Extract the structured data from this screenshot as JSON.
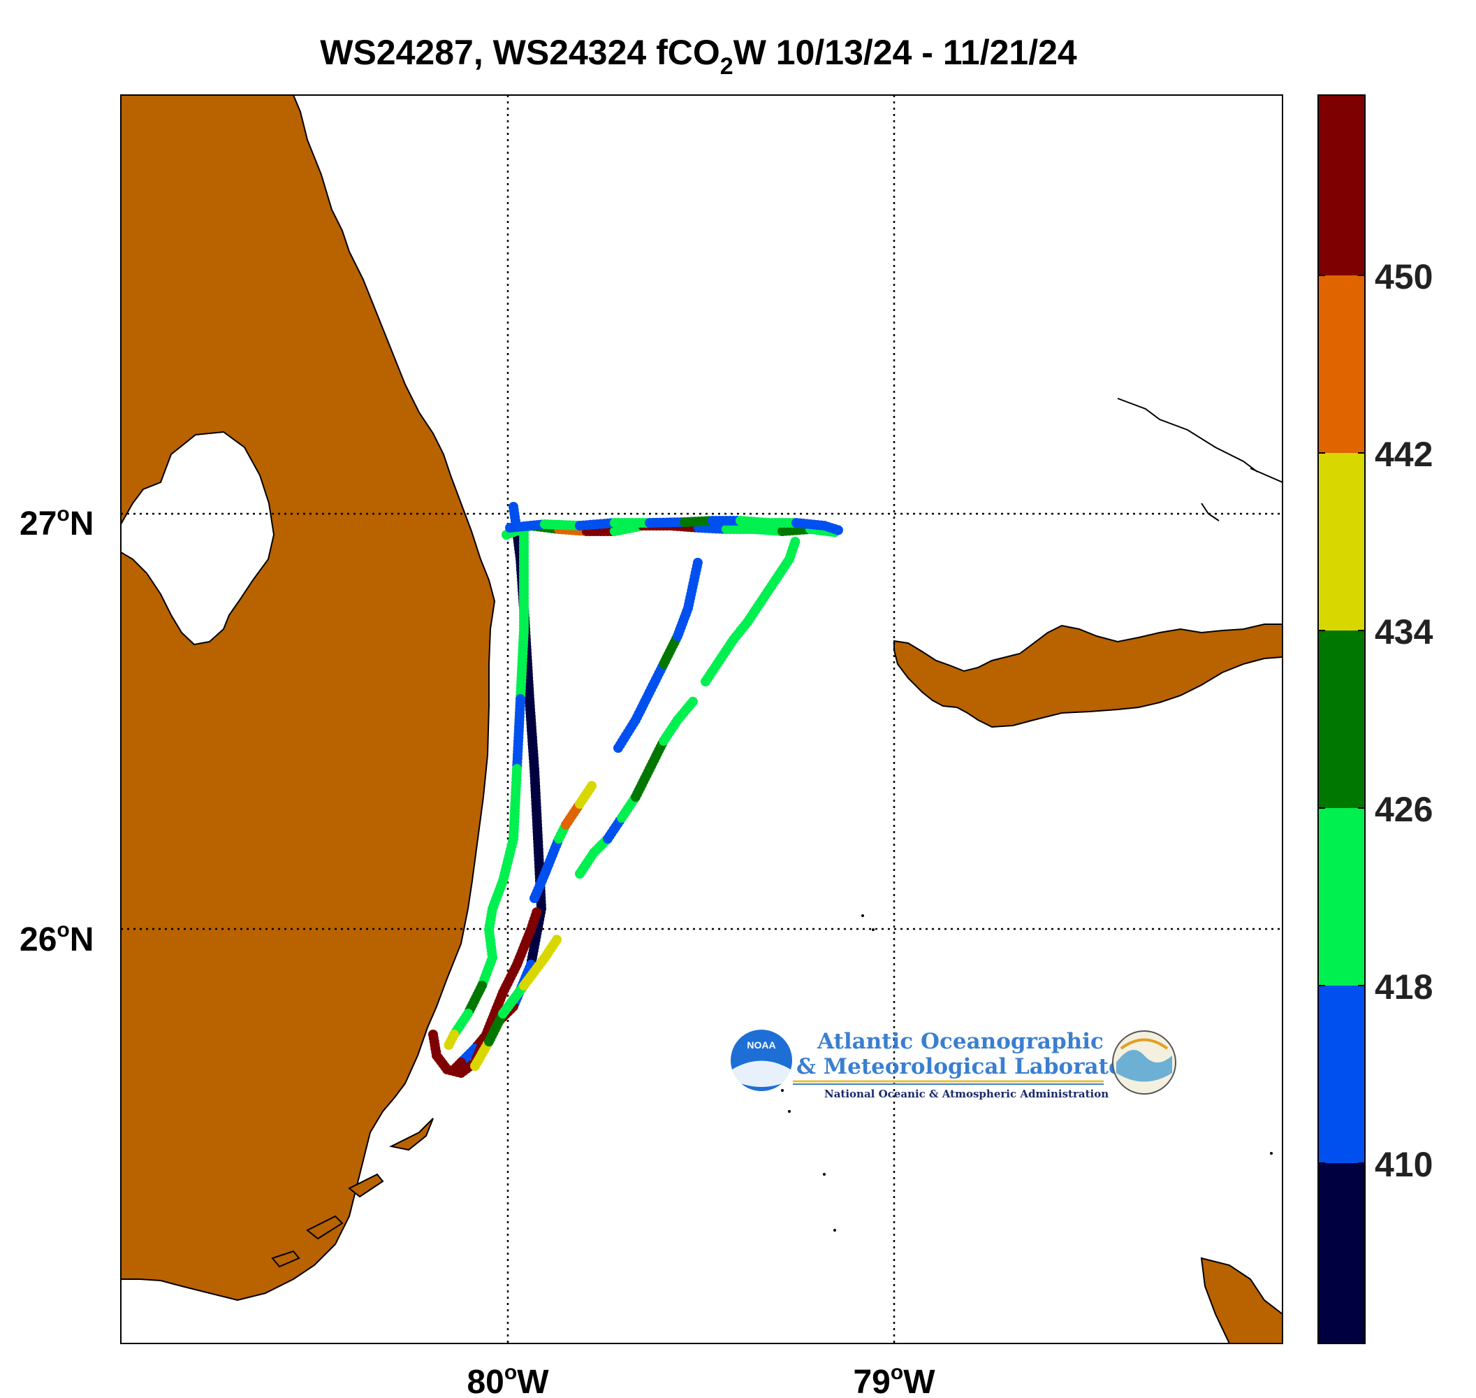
{
  "title": {
    "prefix": "WS24287, WS24324 fCO",
    "subscript": "2",
    "suffix": "W 10/13/24 - 11/21/24"
  },
  "map": {
    "lat_range": [
      25.0,
      28.0
    ],
    "lon_range": [
      -80.5,
      -77.5
    ],
    "grid": "dotted",
    "land_color": "#b86200",
    "lat_ticks": [
      {
        "deg": "27",
        "hemi": "N"
      },
      {
        "deg": "26",
        "hemi": "N"
      }
    ],
    "lon_ticks": [
      {
        "deg": "80",
        "hemi": "W"
      },
      {
        "deg": "79",
        "hemi": "W"
      }
    ],
    "degree_symbol": "o"
  },
  "colorbar": {
    "labels": [
      "450",
      "442",
      "434",
      "426",
      "418",
      "410"
    ],
    "bands": [
      {
        "range": [
          458,
          466
        ],
        "color": "#7f0000"
      },
      {
        "range": [
          450,
          458
        ],
        "color": "#7f0000"
      },
      {
        "range": [
          442,
          450
        ],
        "color": "#e06400"
      },
      {
        "range": [
          434,
          442
        ],
        "color": "#d8d800"
      },
      {
        "range": [
          426,
          434
        ],
        "color": "#007800"
      },
      {
        "range": [
          418,
          426
        ],
        "color": "#00f050"
      },
      {
        "range": [
          410,
          418
        ],
        "color": "#0050f0"
      },
      {
        "range": [
          402,
          410
        ],
        "color": "#000040"
      }
    ]
  },
  "track_colors": {
    "lt410": "#000040",
    "410_418": "#0050f0",
    "418_426": "#00f050",
    "426_434": "#007800",
    "434_442": "#d8d800",
    "442_450": "#e06400",
    "gt450": "#7f0000"
  },
  "logo": {
    "badge": "NOAA",
    "line1": "Atlantic Oceanographic",
    "line2": "& Meteorological Laboratory",
    "line3": "National Oceanic & Atmospheric Administration"
  }
}
